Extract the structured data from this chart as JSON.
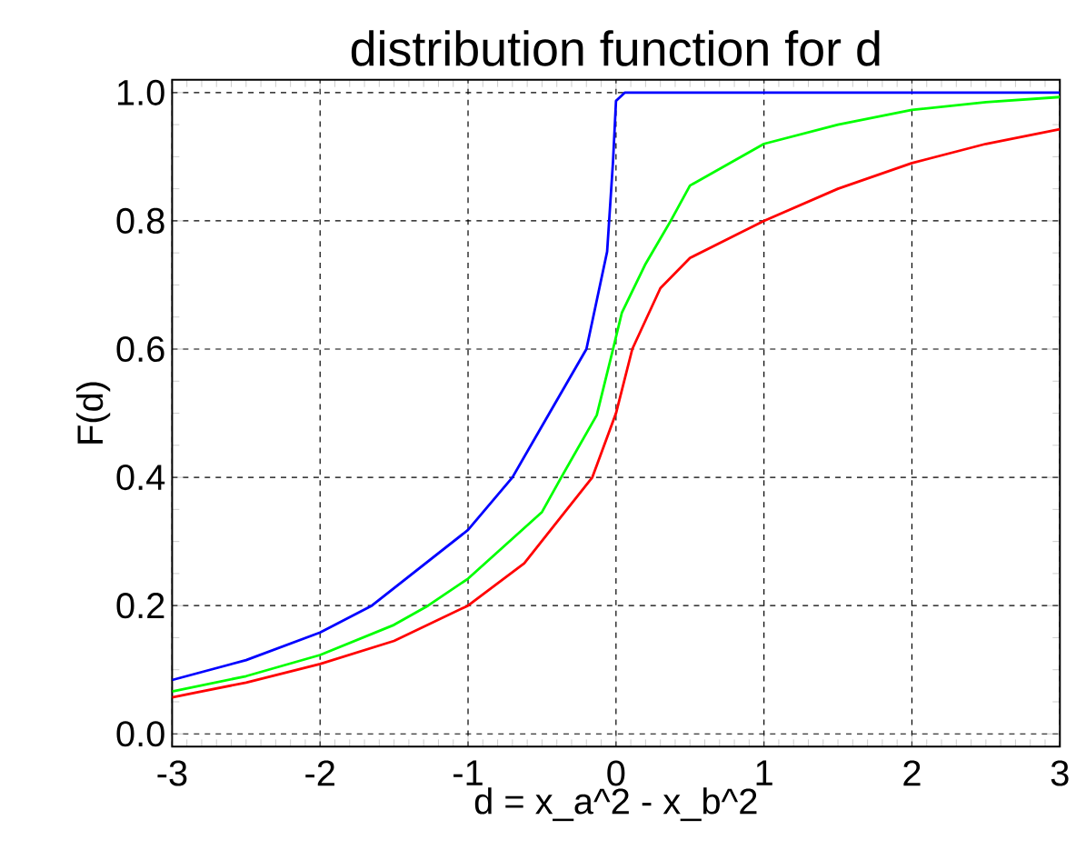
{
  "chart_data": {
    "type": "line",
    "title": "distribution function for d",
    "xlabel": "d = x_a^2 - x_b^2",
    "ylabel": "F(d)",
    "xlim": [
      -3,
      3
    ],
    "ylim": [
      -0.02,
      1.02
    ],
    "xticks": [
      -3,
      -2,
      -1,
      0,
      1,
      2,
      3
    ],
    "yticks": [
      {
        "value": 0,
        "label": "0.0"
      },
      {
        "value": 0.2,
        "label": "0.2"
      },
      {
        "value": 0.4,
        "label": "0.4"
      },
      {
        "value": 0.6,
        "label": "0.6"
      },
      {
        "value": 0.8,
        "label": "0.8"
      },
      {
        "value": 1,
        "label": "1.0"
      }
    ],
    "grid": true,
    "series": [
      {
        "color": "#ff0000",
        "x": [
          -3,
          -2.5,
          -2,
          -1.5,
          -1,
          -0.62,
          -0.4,
          -0.16,
          0,
          0.11,
          0.3,
          0.5,
          1,
          1.5,
          2,
          2.5,
          3
        ],
        "values": [
          0.057,
          0.08,
          0.109,
          0.145,
          0.2,
          0.266,
          0.33,
          0.4,
          0.5,
          0.6,
          0.695,
          0.742,
          0.8,
          0.85,
          0.89,
          0.92,
          0.943
        ]
      },
      {
        "color": "#00ff00",
        "x": [
          -3,
          -2.5,
          -2,
          -1.5,
          -1.27,
          -1,
          -0.5,
          -0.37,
          -0.13,
          -0.02,
          0.04,
          0.2,
          0.37,
          0.5,
          1,
          1.5,
          2,
          2.5,
          3
        ],
        "values": [
          0.066,
          0.09,
          0.123,
          0.17,
          0.2,
          0.242,
          0.346,
          0.4,
          0.497,
          0.6,
          0.657,
          0.733,
          0.8,
          0.855,
          0.92,
          0.95,
          0.973,
          0.985,
          0.993
        ]
      },
      {
        "color": "#0000ff",
        "x": [
          -3,
          -2.5,
          -2,
          -1.65,
          -1,
          -0.7,
          -0.45,
          -0.2,
          -0.06,
          -0.02,
          0,
          0.06,
          1,
          2,
          3
        ],
        "values": [
          0.084,
          0.115,
          0.158,
          0.2,
          0.318,
          0.4,
          0.5,
          0.6,
          0.752,
          0.893,
          0.987,
          1.0,
          1.0,
          1.0,
          1.0
        ]
      }
    ]
  }
}
